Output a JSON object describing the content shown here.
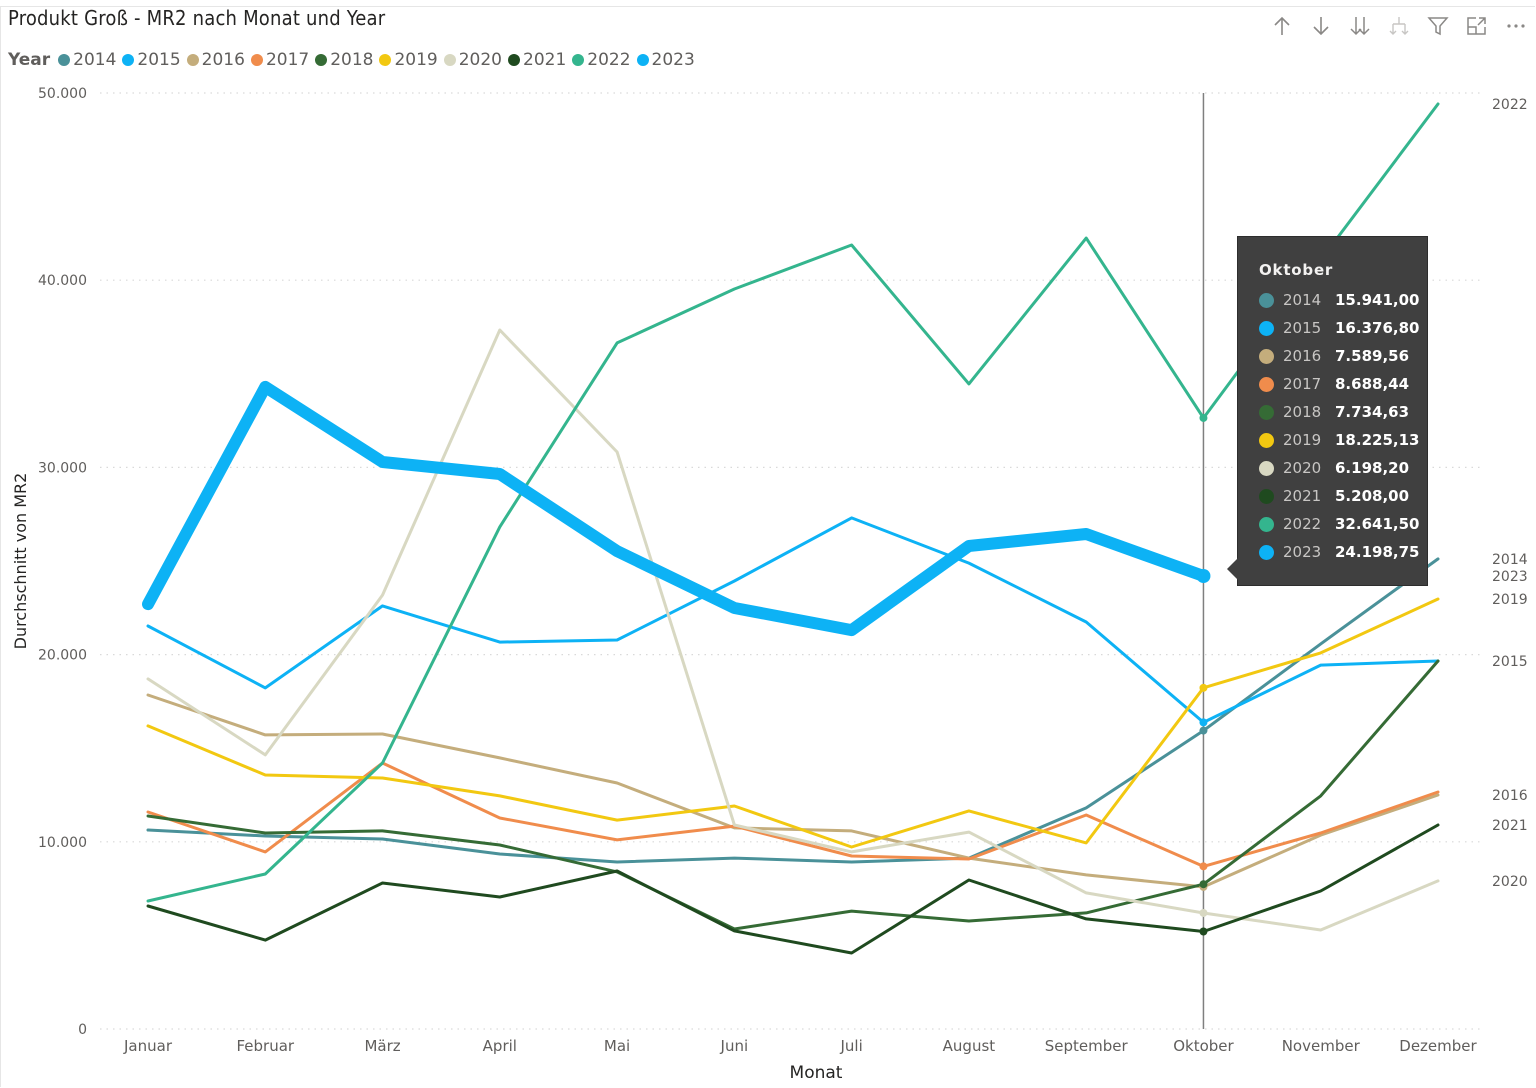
{
  "header": {
    "title": "Produkt Groß - MR2 nach Monat und Year"
  },
  "toolbar": {
    "icons": [
      "arrow-up-icon",
      "arrow-down-icon",
      "double-arrow-down-icon",
      "expand-hierarchy-icon",
      "filter-icon",
      "focus-mode-icon",
      "more-options-icon"
    ]
  },
  "legend": {
    "title": "Year",
    "items": [
      {
        "label": "2014",
        "color": "#4a9199"
      },
      {
        "label": "2015",
        "color": "#0db2f5"
      },
      {
        "label": "2016",
        "color": "#c4ad7c"
      },
      {
        "label": "2017",
        "color": "#f08c4c"
      },
      {
        "label": "2018",
        "color": "#356b35"
      },
      {
        "label": "2019",
        "color": "#f2c811"
      },
      {
        "label": "2020",
        "color": "#d8d8c2"
      },
      {
        "label": "2021",
        "color": "#1f4a1f"
      },
      {
        "label": "2022",
        "color": "#34b58e"
      },
      {
        "label": "2023",
        "color": "#0db2f5"
      }
    ]
  },
  "tooltip": {
    "title": "Oktober",
    "rows": [
      {
        "year": "2014",
        "value": "15.941,00",
        "color": "#4a9199"
      },
      {
        "year": "2015",
        "value": "16.376,80",
        "color": "#0db2f5"
      },
      {
        "year": "2016",
        "value": "7.589,56",
        "color": "#c4ad7c"
      },
      {
        "year": "2017",
        "value": "8.688,44",
        "color": "#f08c4c"
      },
      {
        "year": "2018",
        "value": "7.734,63",
        "color": "#356b35"
      },
      {
        "year": "2019",
        "value": "18.225,13",
        "color": "#f2c811"
      },
      {
        "year": "2020",
        "value": "6.198,20",
        "color": "#d8d8c2"
      },
      {
        "year": "2021",
        "value": "5.208,00",
        "color": "#1f4a1f"
      },
      {
        "year": "2022",
        "value": "32.641,50",
        "color": "#34b58e"
      },
      {
        "year": "2023",
        "value": "24.198,75",
        "color": "#0db2f5"
      }
    ]
  },
  "chart_data": {
    "type": "line",
    "title": "Produkt Groß - MR2 nach Monat und Year",
    "xlabel": "Monat",
    "ylabel": "Durchschnitt von MR2",
    "ylim": [
      0,
      50000
    ],
    "yticks": [
      0,
      10000,
      20000,
      30000,
      40000,
      50000
    ],
    "ytick_labels": [
      "0",
      "10.000",
      "20.000",
      "30.000",
      "40.000",
      "50.000"
    ],
    "grid": true,
    "legend_position": "top-left",
    "categories": [
      "Januar",
      "Februar",
      "März",
      "April",
      "Mai",
      "Juni",
      "Juli",
      "August",
      "September",
      "Oktober",
      "November",
      "Dezember"
    ],
    "highlighted_category": "Oktober",
    "end_labels": [
      "2022",
      "2014",
      "2023",
      "2019",
      "2015",
      "2016",
      "2021",
      "2020"
    ],
    "series": [
      {
        "name": "2014",
        "color": "#4a9199",
        "width": 3,
        "values": [
          10630,
          10310,
          10150,
          9350,
          8920,
          9130,
          8920,
          9130,
          11810,
          15941.0,
          20570,
          25110
        ],
        "end_label": "2014"
      },
      {
        "name": "2015",
        "color": "#0db2f5",
        "width": 3,
        "values": [
          21530,
          18220,
          22600,
          20670,
          20780,
          23930,
          27300,
          24890,
          21740,
          16376.8,
          19440,
          19660
        ],
        "end_label": "2015"
      },
      {
        "name": "2016",
        "color": "#c4ad7c",
        "width": 3,
        "values": [
          17840,
          15710,
          15760,
          14480,
          13140,
          10740,
          10580,
          9130,
          8230,
          7589.56,
          10360,
          12500
        ],
        "end_label": "2016"
      },
      {
        "name": "2017",
        "color": "#f08c4c",
        "width": 3,
        "values": [
          11590,
          9460,
          14210,
          11270,
          10100,
          10840,
          9240,
          9080,
          11430,
          8688.44,
          10470,
          12660
        ],
        "end_label": ""
      },
      {
        "name": "2018",
        "color": "#356b35",
        "width": 3,
        "values": [
          11380,
          10470,
          10580,
          9830,
          8390,
          5340,
          6300,
          5770,
          6200,
          7734.63,
          12450,
          19660
        ],
        "end_label": ""
      },
      {
        "name": "2019",
        "color": "#f2c811",
        "width": 3,
        "values": [
          16190,
          13570,
          13410,
          12450,
          11160,
          11910,
          9720,
          11650,
          9940,
          18225.13,
          20090,
          22970
        ],
        "end_label": "2019"
      },
      {
        "name": "2020",
        "color": "#d8d8c2",
        "width": 3,
        "values": [
          18700,
          14640,
          23180,
          37340,
          30820,
          10900,
          9460,
          10520,
          7270,
          6198.2,
          5290,
          7910
        ],
        "end_label": "2020"
      },
      {
        "name": "2021",
        "color": "#1f4a1f",
        "width": 3,
        "values": [
          6570,
          4750,
          7800,
          7050,
          8440,
          5240,
          4060,
          7960,
          5880,
          5208.0,
          7370,
          10900
        ],
        "end_label": "2021"
      },
      {
        "name": "2022",
        "color": "#34b58e",
        "width": 3,
        "values": [
          6840,
          8280,
          14210,
          26820,
          36650,
          39530,
          41880,
          34460,
          42250,
          32641.5,
          41080,
          49410
        ],
        "end_label": "2022"
      },
      {
        "name": "2023",
        "color": "#0db2f5",
        "width": 12,
        "values": [
          22700,
          34300,
          30290,
          29650,
          25530,
          22490,
          21310,
          25800,
          26440,
          24198.75,
          null,
          null
        ],
        "end_label": "2023"
      }
    ]
  }
}
